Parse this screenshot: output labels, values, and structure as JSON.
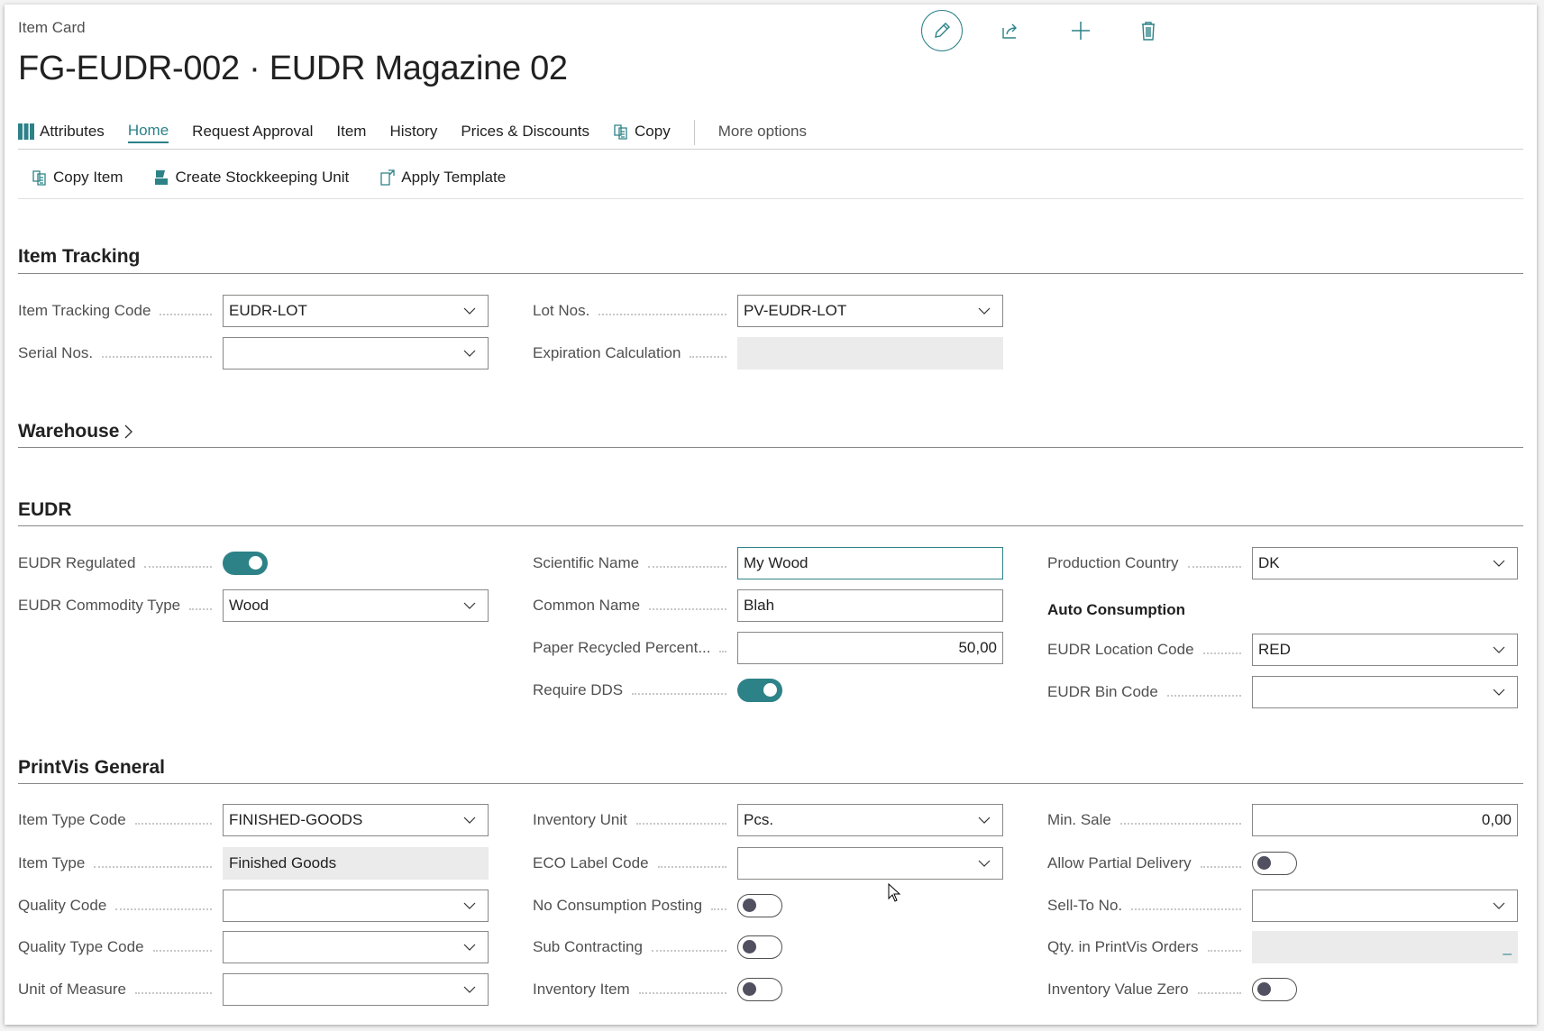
{
  "header": {
    "breadcrumb": "Item Card",
    "title": "FG-EUDR-002 · EUDR Magazine 02"
  },
  "actions": {
    "edit": "pencil-icon",
    "share": "share-icon",
    "new": "plus-icon",
    "delete": "trash-icon"
  },
  "nav": {
    "attributes": "Attributes",
    "home": "Home",
    "request_approval": "Request Approval",
    "item": "Item",
    "history": "History",
    "prices": "Prices & Discounts",
    "copy": "Copy",
    "more": "More options"
  },
  "subactions": {
    "copy_item": "Copy Item",
    "create_sku": "Create Stockkeeping Unit",
    "apply_template": "Apply Template"
  },
  "item_tracking": {
    "title": "Item Tracking",
    "tracking_code": {
      "label": "Item Tracking Code",
      "value": "EUDR-LOT"
    },
    "serial_nos": {
      "label": "Serial Nos.",
      "value": ""
    },
    "lot_nos": {
      "label": "Lot Nos.",
      "value": "PV-EUDR-LOT"
    },
    "expiration": {
      "label": "Expiration Calculation",
      "value": ""
    }
  },
  "warehouse": {
    "title": "Warehouse"
  },
  "eudr": {
    "title": "EUDR",
    "regulated": {
      "label": "EUDR Regulated",
      "on": true
    },
    "commodity": {
      "label": "EUDR Commodity Type",
      "value": "Wood"
    },
    "scientific": {
      "label": "Scientific Name",
      "value": "My Wood"
    },
    "common": {
      "label": "Common Name",
      "value": "Blah"
    },
    "recycled": {
      "label": "Paper Recycled Percent...",
      "value": "50,00"
    },
    "require_dds": {
      "label": "Require DDS",
      "on": true
    },
    "country": {
      "label": "Production Country",
      "value": "DK"
    },
    "auto_consumption": "Auto Consumption",
    "location": {
      "label": "EUDR Location Code",
      "value": "RED"
    },
    "bin": {
      "label": "EUDR Bin Code",
      "value": ""
    }
  },
  "printvis": {
    "title": "PrintVis General",
    "type_code": {
      "label": "Item Type Code",
      "value": "FINISHED-GOODS"
    },
    "type": {
      "label": "Item Type",
      "value": "Finished Goods"
    },
    "quality": {
      "label": "Quality Code",
      "value": ""
    },
    "quality_type": {
      "label": "Quality Type Code",
      "value": ""
    },
    "uom": {
      "label": "Unit of Measure",
      "value": ""
    },
    "inv_unit": {
      "label": "Inventory Unit",
      "value": "Pcs."
    },
    "eco": {
      "label": "ECO Label Code",
      "value": ""
    },
    "no_consumption": {
      "label": "No Consumption Posting",
      "on": false
    },
    "subcontract": {
      "label": "Sub Contracting",
      "on": false
    },
    "inv_item": {
      "label": "Inventory Item",
      "on": false
    },
    "min_sale": {
      "label": "Min. Sale",
      "value": "0,00"
    },
    "partial": {
      "label": "Allow Partial Delivery",
      "on": false
    },
    "sell_to": {
      "label": "Sell-To No.",
      "value": ""
    },
    "qty_orders": {
      "label": "Qty. in PrintVis Orders",
      "value": "_"
    },
    "inv_zero": {
      "label": "Inventory Value Zero",
      "on": false
    }
  },
  "colors": {
    "accent": "#2d8288",
    "label": "#505050"
  }
}
